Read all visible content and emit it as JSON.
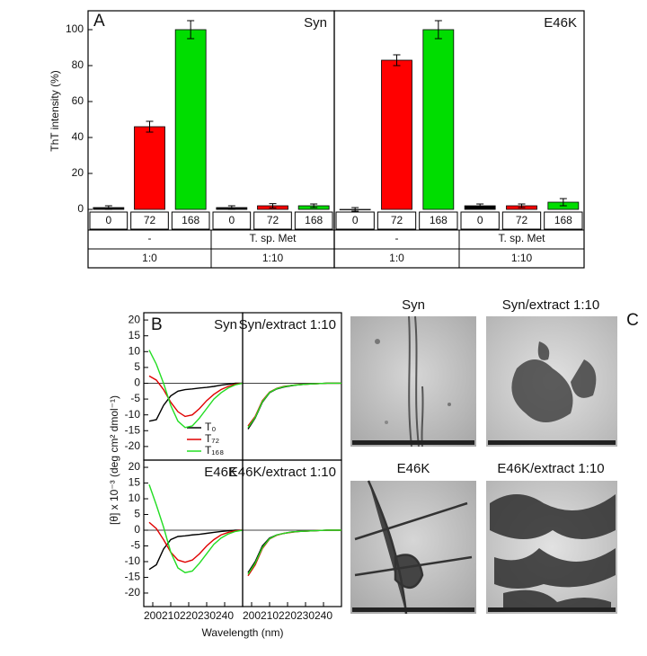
{
  "chart_data": [
    {
      "type": "bar",
      "panel": "A",
      "title": "Syn",
      "ylabel": "ThT intensity (%)",
      "categories": [
        "0",
        "72",
        "168",
        "0",
        "72",
        "168"
      ],
      "groups": [
        {
          "label": "-",
          "ratio": "1:0"
        },
        {
          "label": "T. sp. Met",
          "ratio": "1:10"
        }
      ],
      "values": [
        1,
        46,
        100,
        1,
        2,
        2
      ],
      "errors": [
        1,
        3,
        5,
        1,
        1.2,
        1
      ],
      "colors": [
        "#000000",
        "#ff0000",
        "#00dd00",
        "#000000",
        "#ff0000",
        "#00dd00"
      ],
      "ylim": [
        -1,
        110.5
      ],
      "yticks": [
        0,
        20,
        40,
        60,
        80,
        100
      ]
    },
    {
      "type": "bar",
      "title": "E46K",
      "categories": [
        "0",
        "72",
        "168",
        "0",
        "72",
        "168"
      ],
      "groups": [
        {
          "label": "-",
          "ratio": "1:0"
        },
        {
          "label": "T. sp. Met",
          "ratio": "1:10"
        }
      ],
      "values": [
        0,
        83,
        100,
        2,
        2,
        4
      ],
      "errors": [
        1,
        3,
        5,
        1,
        1,
        2
      ],
      "colors": [
        "#000000",
        "#ff0000",
        "#00dd00",
        "#000000",
        "#ff0000",
        "#00dd00"
      ],
      "ylim": [
        -1,
        110.5
      ]
    },
    {
      "type": "line",
      "panel": "B",
      "title": "Syn",
      "ylabel": "[θ] x 10⁻³ (deg cm² dmol⁻¹)",
      "x": [
        198,
        202,
        206,
        210,
        214,
        218,
        222,
        226,
        230,
        234,
        238,
        242,
        246,
        250
      ],
      "xlim": [
        195,
        250
      ],
      "ylim": [
        -24.3,
        22.3
      ],
      "yticks": [
        -20,
        -15,
        -10,
        -5,
        0,
        5,
        10,
        15,
        20
      ],
      "series": [
        {
          "name": "T₀",
          "color": "#000000",
          "values": [
            -12,
            -11.5,
            -7,
            -4,
            -2.5,
            -2,
            -1.8,
            -1.5,
            -1.3,
            -1,
            -0.6,
            -0.3,
            0,
            0
          ]
        },
        {
          "name": "T₇₂",
          "color": "#e00000",
          "values": [
            2.3,
            1,
            -2,
            -6,
            -9,
            -10.5,
            -10,
            -8,
            -5.5,
            -3.5,
            -2,
            -1,
            -0.3,
            0
          ]
        },
        {
          "name": "T₁₆₈",
          "color": "#22dd22",
          "values": [
            10.5,
            6,
            0,
            -7,
            -12,
            -14,
            -13.5,
            -11,
            -8,
            -5,
            -3,
            -1.5,
            -0.5,
            0
          ]
        }
      ]
    },
    {
      "type": "line",
      "title": "Syn/extract 1:10",
      "x": [
        198,
        202,
        206,
        210,
        214,
        218,
        222,
        226,
        230,
        234,
        238,
        242,
        246,
        250
      ],
      "xlim": [
        195,
        250
      ],
      "ylim": [
        -24.3,
        22.3
      ],
      "series": [
        {
          "color": "#000000",
          "values": [
            -14.5,
            -11,
            -6,
            -3,
            -1.8,
            -1.2,
            -0.8,
            -0.5,
            -0.3,
            -0.2,
            -0.1,
            0,
            0,
            0
          ]
        },
        {
          "color": "#e00000",
          "values": [
            -13.5,
            -10.5,
            -5.5,
            -2.8,
            -1.6,
            -1,
            -0.7,
            -0.4,
            -0.3,
            -0.2,
            -0.1,
            0,
            0,
            0
          ]
        },
        {
          "color": "#22dd22",
          "values": [
            -14,
            -10.8,
            -5.8,
            -2.9,
            -1.7,
            -1.1,
            -0.7,
            -0.5,
            -0.3,
            -0.2,
            -0.1,
            0,
            0,
            0
          ]
        }
      ]
    },
    {
      "type": "line",
      "title": "E46K",
      "xlabel": "Wavelength (nm)",
      "x": [
        198,
        202,
        206,
        210,
        214,
        218,
        222,
        226,
        230,
        234,
        238,
        242,
        246,
        250
      ],
      "xlim": [
        195,
        250
      ],
      "ylim": [
        -24.3,
        22.3
      ],
      "yticks": [
        -20,
        -15,
        -10,
        -5,
        0,
        5,
        10,
        15,
        20
      ],
      "xticks": [
        200,
        210,
        220,
        230,
        240
      ],
      "series": [
        {
          "color": "#000000",
          "values": [
            -12.5,
            -11,
            -6,
            -3,
            -2,
            -1.8,
            -1.5,
            -1.3,
            -1,
            -0.7,
            -0.4,
            -0.2,
            0,
            0
          ]
        },
        {
          "color": "#e00000",
          "values": [
            2.5,
            0.5,
            -3,
            -7,
            -9.5,
            -10.2,
            -9.5,
            -7.5,
            -5,
            -3,
            -1.5,
            -0.7,
            -0.2,
            0
          ]
        },
        {
          "color": "#22dd22",
          "values": [
            14.5,
            8,
            1,
            -7,
            -12,
            -13.5,
            -13,
            -10.5,
            -7.5,
            -4.5,
            -2.5,
            -1.2,
            -0.4,
            0
          ]
        }
      ]
    },
    {
      "type": "line",
      "title": "E46K/extract 1:10",
      "x": [
        198,
        202,
        206,
        210,
        214,
        218,
        222,
        226,
        230,
        234,
        238,
        242,
        246,
        250
      ],
      "xlim": [
        195,
        250
      ],
      "ylim": [
        -24.3,
        22.3
      ],
      "xticks": [
        200,
        210,
        220,
        230,
        240
      ],
      "series": [
        {
          "color": "#000000",
          "values": [
            -13.5,
            -10,
            -5,
            -2.5,
            -1.5,
            -1,
            -0.6,
            -0.4,
            -0.3,
            -0.2,
            -0.1,
            0,
            0,
            0
          ]
        },
        {
          "color": "#e00000",
          "values": [
            -14.5,
            -11,
            -5.8,
            -2.8,
            -1.6,
            -1,
            -0.7,
            -0.4,
            -0.3,
            -0.2,
            -0.1,
            0,
            0,
            0
          ]
        },
        {
          "color": "#22dd22",
          "values": [
            -14,
            -10.5,
            -5.5,
            -2.7,
            -1.5,
            -1,
            -0.6,
            -0.4,
            -0.3,
            -0.2,
            -0.1,
            0,
            0,
            0
          ]
        }
      ]
    }
  ],
  "micrographs": {
    "panel": "C",
    "titles": [
      "Syn",
      "Syn/extract 1:10",
      "E46K",
      "E46K/extract 1:10"
    ]
  }
}
